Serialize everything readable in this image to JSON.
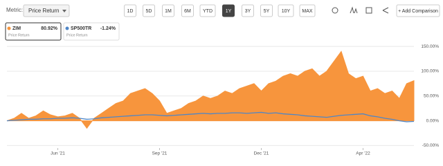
{
  "toolbar": {
    "metric_label": "Metric:",
    "metric_value": "Price Return",
    "ranges": [
      "1D",
      "5D",
      "1M",
      "6M",
      "YTD",
      "1Y",
      "3Y",
      "5Y",
      "10Y",
      "MAX"
    ],
    "selected_range": "1Y",
    "add_comparison": "+ Add Comparison"
  },
  "chart_data": {
    "type": "area",
    "x": [
      0,
      1,
      2,
      3,
      4,
      5,
      6,
      7,
      8,
      9,
      10,
      11,
      12,
      13,
      14,
      15,
      16,
      17,
      18,
      19,
      20,
      21,
      22,
      23,
      24,
      25,
      26,
      27,
      28,
      29,
      30,
      31,
      32,
      33,
      34,
      35,
      36,
      37,
      38,
      39,
      40,
      41,
      42,
      43,
      44,
      45,
      46,
      47,
      48,
      49,
      50,
      51,
      52,
      53,
      54,
      55,
      56
    ],
    "xlim": [
      0,
      56
    ],
    "xticks": [
      {
        "value": 7,
        "label": "Jun '21"
      },
      {
        "value": 21,
        "label": "Sep '21"
      },
      {
        "value": 35,
        "label": "Dec '21"
      },
      {
        "value": 49,
        "label": "Apr '22"
      }
    ],
    "ylim": [
      -55,
      160
    ],
    "yticks": [
      {
        "value": -50,
        "label": "-50.00%"
      },
      {
        "value": 0,
        "label": "0.00%"
      },
      {
        "value": 50,
        "label": "50.00%"
      },
      {
        "value": 100,
        "label": "100.00%"
      },
      {
        "value": 150,
        "label": "150.00%"
      }
    ],
    "grid": true,
    "series": [
      {
        "name": "ZIM",
        "color": "#f7953d",
        "style": "area",
        "legend_value": "80.92%",
        "subtitle": "Price Return",
        "values": [
          0,
          5,
          15,
          5,
          10,
          20,
          12,
          8,
          10,
          15,
          5,
          -15,
          5,
          15,
          25,
          35,
          40,
          55,
          60,
          65,
          55,
          40,
          15,
          20,
          25,
          35,
          40,
          50,
          45,
          50,
          60,
          55,
          65,
          70,
          75,
          60,
          75,
          80,
          90,
          95,
          90,
          100,
          105,
          90,
          100,
          120,
          140,
          95,
          85,
          90,
          60,
          65,
          55,
          60,
          45,
          75,
          80.92
        ]
      },
      {
        "name": "SP500TR",
        "color": "#4f86c6",
        "style": "line",
        "legend_value": "-1.24%",
        "subtitle": "Price Return",
        "values": [
          0,
          1,
          2,
          3,
          3,
          4,
          4,
          5,
          5,
          6,
          5,
          3,
          4,
          6,
          7,
          8,
          9,
          10,
          11,
          12,
          12,
          11,
          10,
          11,
          12,
          13,
          14,
          15,
          14,
          15,
          15,
          16,
          16,
          15,
          16,
          17,
          15,
          16,
          14,
          13,
          12,
          10,
          9,
          8,
          7,
          9,
          11,
          12,
          13,
          14,
          10,
          8,
          5,
          3,
          0,
          -2,
          -1.24
        ]
      }
    ]
  }
}
